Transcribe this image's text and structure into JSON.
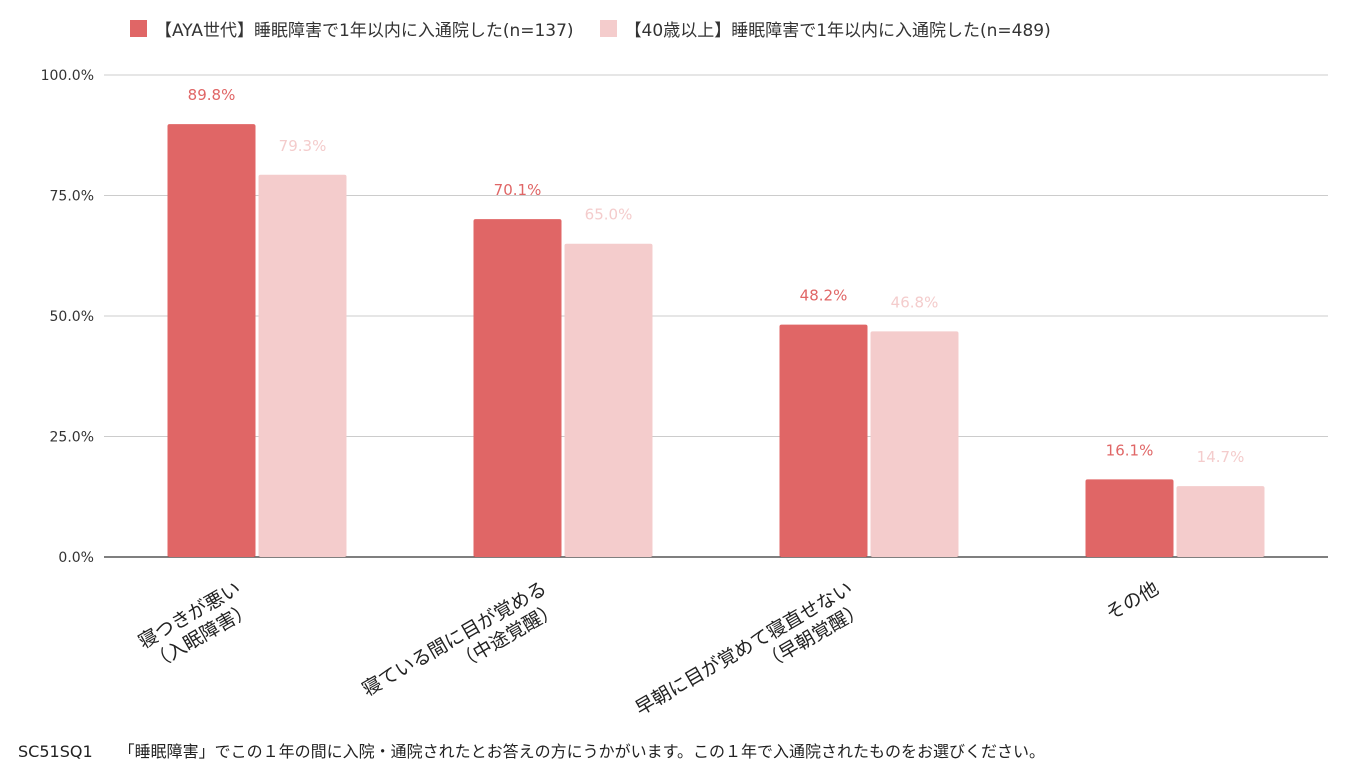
{
  "colors": {
    "series1": "#e06666",
    "series2": "#f4cccc",
    "grid": "#cccccc",
    "axis": "#333333"
  },
  "footnote": {
    "code": "SC51SQ1",
    "text": "「睡眠障害」でこの１年の間に入院・通院されたとお答えの方にうかがいます。この１年で入通院されたものをお選びください。"
  },
  "chart_data": {
    "type": "bar",
    "title": "",
    "xlabel": "",
    "ylabel": "",
    "ylim": [
      0,
      100
    ],
    "y_ticks": [
      "0.0%",
      "25.0%",
      "50.0%",
      "75.0%",
      "100.0%"
    ],
    "y_tick_values": [
      0,
      25,
      50,
      75,
      100
    ],
    "grid": true,
    "legend_position": "top",
    "categories": [
      [
        "寝つきが悪い",
        "（入眠障害）"
      ],
      [
        "寝ている間に目が覚める",
        "（中途覚醒）"
      ],
      [
        "早朝に目が覚めて寝直せない",
        "（早朝覚醒）"
      ],
      [
        "その他"
      ]
    ],
    "series": [
      {
        "name": "【AYA世代】睡眠障害で1年以内に入通院した(n=137)",
        "values": [
          89.8,
          70.1,
          48.2,
          16.1
        ],
        "labels": [
          "89.8%",
          "70.1%",
          "48.2%",
          "16.1%"
        ]
      },
      {
        "name": "【40歳以上】睡眠障害で1年以内に入通院した(n=489)",
        "values": [
          79.3,
          65.0,
          46.8,
          14.7
        ],
        "labels": [
          "79.3%",
          "65.0%",
          "46.8%",
          "14.7%"
        ]
      }
    ]
  }
}
